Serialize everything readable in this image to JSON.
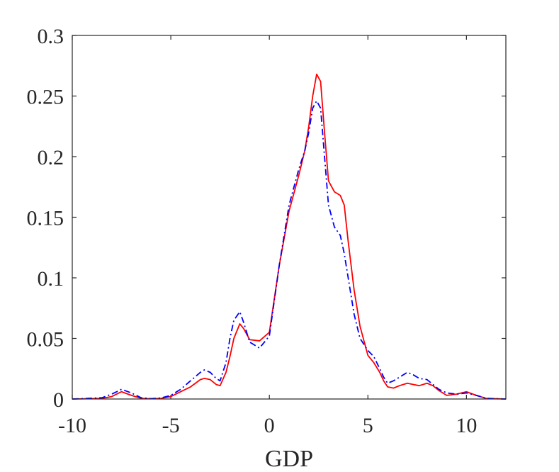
{
  "chart_data": {
    "type": "line",
    "title": "",
    "xlabel": "GDP",
    "ylabel": "",
    "xlim": [
      -10,
      12
    ],
    "ylim": [
      0,
      0.3
    ],
    "x_ticks": [
      -10,
      -5,
      0,
      5,
      10
    ],
    "x_tick_labels": [
      "-10",
      "-5",
      "0",
      "5",
      "10"
    ],
    "y_ticks": [
      0,
      0.05,
      0.1,
      0.15,
      0.2,
      0.25,
      0.3
    ],
    "y_tick_labels": [
      "0",
      "0.05",
      "0.1",
      "0.15",
      "0.2",
      "0.25",
      "0.3"
    ],
    "grid": false,
    "box": true,
    "series": [
      {
        "color": "#ff0000",
        "line_style": "solid",
        "x": [
          -10,
          -8.5,
          -8,
          -7.5,
          -7,
          -6.5,
          -6,
          -5.5,
          -5,
          -4.5,
          -4,
          -3.5,
          -3.3,
          -3,
          -2.7,
          -2.5,
          -2.2,
          -2,
          -1.8,
          -1.5,
          -1.3,
          -1,
          -0.5,
          0,
          0.5,
          1,
          1.5,
          1.8,
          2,
          2.2,
          2.4,
          2.6,
          2.8,
          3,
          3.3,
          3.6,
          3.8,
          4,
          4.3,
          4.6,
          5,
          5.3,
          5.6,
          5.8,
          6,
          6.3,
          6.6,
          7,
          7.3,
          7.6,
          8,
          8.3,
          8.6,
          9,
          9.5,
          10,
          10.5,
          11,
          12
        ],
        "values": [
          0,
          0.0005,
          0.002,
          0.006,
          0.003,
          0.0005,
          0.0002,
          0.0005,
          0.002,
          0.006,
          0.01,
          0.016,
          0.017,
          0.016,
          0.012,
          0.011,
          0.022,
          0.035,
          0.05,
          0.062,
          0.058,
          0.049,
          0.048,
          0.055,
          0.11,
          0.155,
          0.185,
          0.205,
          0.225,
          0.25,
          0.268,
          0.262,
          0.22,
          0.18,
          0.171,
          0.168,
          0.16,
          0.13,
          0.09,
          0.06,
          0.036,
          0.03,
          0.022,
          0.015,
          0.01,
          0.009,
          0.011,
          0.013,
          0.012,
          0.011,
          0.013,
          0.011,
          0.007,
          0.003,
          0.004,
          0.006,
          0.003,
          0.0005,
          0
        ]
      },
      {
        "color": "#0000ff",
        "line_style": "dashdot",
        "x": [
          -10,
          -8.5,
          -8,
          -7.5,
          -7,
          -6.5,
          -6,
          -5.5,
          -5,
          -4.5,
          -4,
          -3.5,
          -3.3,
          -3,
          -2.7,
          -2.5,
          -2.2,
          -2,
          -1.8,
          -1.5,
          -1.3,
          -1,
          -0.5,
          0,
          0.5,
          1,
          1.5,
          1.8,
          2,
          2.2,
          2.4,
          2.6,
          2.8,
          3,
          3.3,
          3.6,
          3.8,
          4,
          4.3,
          4.6,
          5,
          5.3,
          5.6,
          5.8,
          6,
          6.3,
          6.6,
          7,
          7.3,
          7.6,
          8,
          8.3,
          8.6,
          9,
          9.5,
          10,
          10.5,
          11,
          12
        ],
        "values": [
          0,
          0.001,
          0.004,
          0.008,
          0.005,
          0.001,
          0.0003,
          0.0008,
          0.003,
          0.008,
          0.015,
          0.022,
          0.024,
          0.022,
          0.017,
          0.015,
          0.03,
          0.05,
          0.065,
          0.072,
          0.063,
          0.047,
          0.042,
          0.052,
          0.11,
          0.16,
          0.19,
          0.205,
          0.22,
          0.24,
          0.246,
          0.24,
          0.2,
          0.16,
          0.142,
          0.135,
          0.12,
          0.1,
          0.07,
          0.05,
          0.04,
          0.035,
          0.025,
          0.018,
          0.013,
          0.015,
          0.018,
          0.022,
          0.02,
          0.017,
          0.016,
          0.012,
          0.008,
          0.005,
          0.004,
          0.005,
          0.003,
          0.0005,
          0
        ]
      }
    ]
  }
}
